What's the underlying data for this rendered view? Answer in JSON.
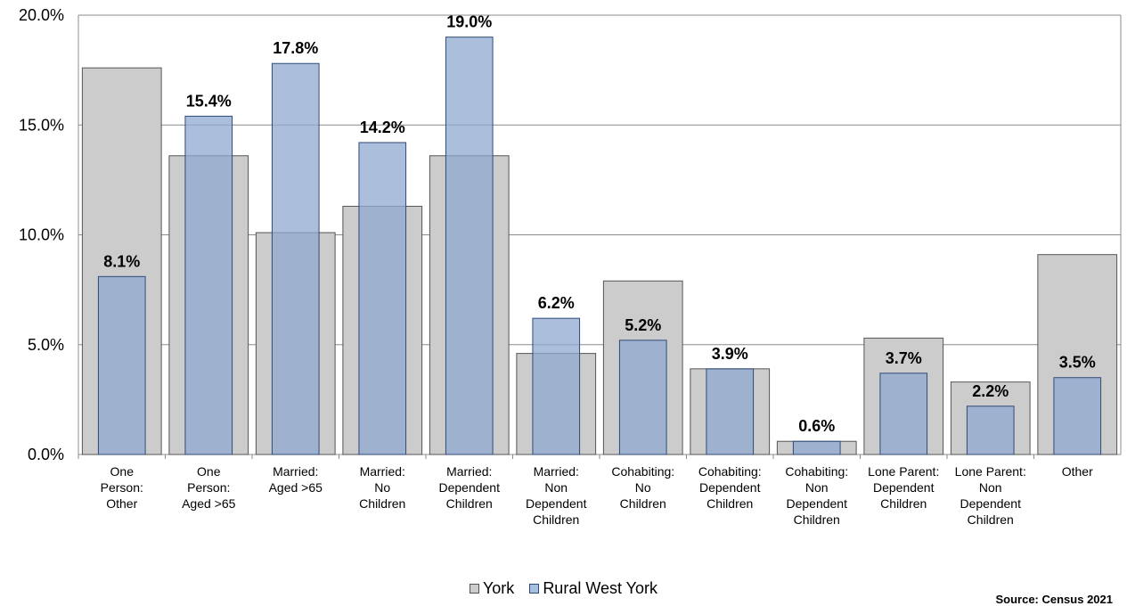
{
  "chart_data": {
    "type": "bar",
    "categories": [
      [
        "One",
        "Person:",
        "Other"
      ],
      [
        "One",
        "Person:",
        "Aged >65"
      ],
      [
        "Married:",
        "Aged >65"
      ],
      [
        "Married:",
        "No",
        "Children"
      ],
      [
        "Married:",
        "Dependent",
        "Children"
      ],
      [
        "Married:",
        "Non",
        "Dependent",
        "Children"
      ],
      [
        "Cohabiting:",
        "No",
        "Children"
      ],
      [
        "Cohabiting:",
        "Dependent",
        "Children"
      ],
      [
        "Cohabiting:",
        "Non",
        "Dependent",
        "Children"
      ],
      [
        "Lone Parent:",
        "Dependent",
        "Children"
      ],
      [
        "Lone Parent:",
        "Non",
        "Dependent",
        "Children"
      ],
      [
        "Other"
      ]
    ],
    "series": [
      {
        "name": "York",
        "color": "#cccccc",
        "stroke": "#555555",
        "values": [
          17.6,
          13.6,
          10.1,
          11.3,
          13.6,
          4.6,
          7.9,
          3.9,
          0.6,
          5.3,
          3.3,
          9.1
        ]
      },
      {
        "name": "Rural West York",
        "color": "#8fa9d1",
        "stroke": "#2f4a78",
        "values": [
          8.1,
          15.4,
          17.8,
          14.2,
          19.0,
          6.2,
          5.2,
          3.9,
          0.6,
          3.7,
          2.2,
          3.5
        ],
        "labels": [
          "8.1%",
          "15.4%",
          "17.8%",
          "14.2%",
          "19.0%",
          "6.2%",
          "5.2%",
          "3.9%",
          "0.6%",
          "3.7%",
          "2.2%",
          "3.5%"
        ]
      }
    ],
    "ylim": [
      0,
      20
    ],
    "yticks": [
      0,
      5,
      10,
      15,
      20
    ],
    "ytick_labels": [
      "0.0%",
      "5.0%",
      "10.0%",
      "15.0%",
      "20.0%"
    ],
    "grid": true,
    "legend_position": "bottom"
  },
  "legend": {
    "york_label": "York",
    "rural_label": "Rural West York"
  },
  "source": "Source: Census 2021"
}
